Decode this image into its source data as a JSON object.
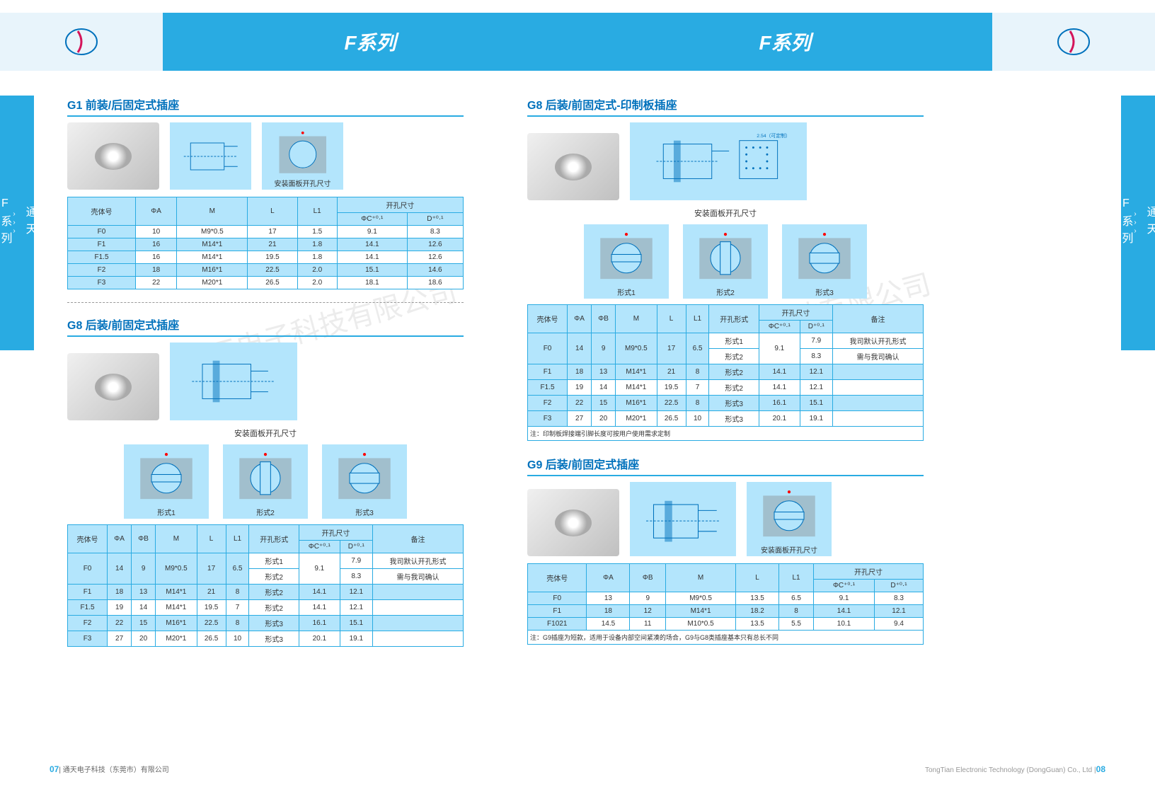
{
  "header": {
    "series_title": "F系列"
  },
  "side": {
    "text_top": "通天",
    "text_bottom": "F系列"
  },
  "g1": {
    "title": "G1 前装/后固定式插座",
    "panel_label": "安装面板开孔尺寸",
    "cols": [
      "壳体号",
      "ΦA",
      "M",
      "L",
      "L1",
      "开孔尺寸"
    ],
    "subcols": [
      "ΦC⁺⁰·¹",
      "D⁺⁰·¹"
    ],
    "rows": [
      [
        "F0",
        "10",
        "M9*0.5",
        "17",
        "1.5",
        "9.1",
        "8.3"
      ],
      [
        "F1",
        "16",
        "M14*1",
        "21",
        "1.8",
        "14.1",
        "12.6"
      ],
      [
        "F1.5",
        "16",
        "M14*1",
        "19.5",
        "1.8",
        "14.1",
        "12.6"
      ],
      [
        "F2",
        "18",
        "M16*1",
        "22.5",
        "2.0",
        "15.1",
        "14.6"
      ],
      [
        "F3",
        "22",
        "M20*1",
        "26.5",
        "2.0",
        "18.1",
        "18.6"
      ]
    ]
  },
  "g8l": {
    "title": "G8 后装/前固定式插座",
    "panel_label": "安装面板开孔尺寸",
    "form_labels": [
      "形式1",
      "形式2",
      "形式3"
    ],
    "cols": [
      "壳体号",
      "ΦA",
      "ΦB",
      "M",
      "L",
      "L1",
      "开孔形式",
      "开孔尺寸",
      "备注"
    ],
    "subcols": [
      "ΦC⁺⁰·¹",
      "D⁺⁰·¹"
    ],
    "rows": [
      [
        "F0",
        "14",
        "9",
        "M9*0.5",
        "17",
        "6.5",
        "形式1",
        "9.1",
        "7.9",
        "我司默认开孔形式"
      ],
      [
        "",
        "",
        "",
        "",
        "",
        "",
        "形式2",
        "",
        "8.3",
        "需与我司确认"
      ],
      [
        "F1",
        "18",
        "13",
        "M14*1",
        "21",
        "8",
        "形式2",
        "14.1",
        "12.1",
        ""
      ],
      [
        "F1.5",
        "19",
        "14",
        "M14*1",
        "19.5",
        "7",
        "形式2",
        "14.1",
        "12.1",
        ""
      ],
      [
        "F2",
        "22",
        "15",
        "M16*1",
        "22.5",
        "8",
        "形式3",
        "16.1",
        "15.1",
        ""
      ],
      [
        "F3",
        "27",
        "20",
        "M20*1",
        "26.5",
        "10",
        "形式3",
        "20.1",
        "19.1",
        ""
      ]
    ]
  },
  "g8r": {
    "title": "G8 后装/前固定式-印制板插座",
    "pcb_note": "2.54（可定制）",
    "panel_label": "安装面板开孔尺寸",
    "form_labels": [
      "形式1",
      "形式2",
      "形式3"
    ],
    "cols": [
      "壳体号",
      "ΦA",
      "ΦB",
      "M",
      "L",
      "L1",
      "开孔形式",
      "开孔尺寸",
      "备注"
    ],
    "subcols": [
      "ΦC⁺⁰·¹",
      "D⁺⁰·¹"
    ],
    "rows": [
      [
        "F0",
        "14",
        "9",
        "M9*0.5",
        "17",
        "6.5",
        "形式1",
        "9.1",
        "7.9",
        "我司默认开孔形式"
      ],
      [
        "",
        "",
        "",
        "",
        "",
        "",
        "形式2",
        "",
        "8.3",
        "需与我司确认"
      ],
      [
        "F1",
        "18",
        "13",
        "M14*1",
        "21",
        "8",
        "形式2",
        "14.1",
        "12.1",
        ""
      ],
      [
        "F1.5",
        "19",
        "14",
        "M14*1",
        "19.5",
        "7",
        "形式2",
        "14.1",
        "12.1",
        ""
      ],
      [
        "F2",
        "22",
        "15",
        "M16*1",
        "22.5",
        "8",
        "形式3",
        "16.1",
        "15.1",
        ""
      ],
      [
        "F3",
        "27",
        "20",
        "M20*1",
        "26.5",
        "10",
        "形式3",
        "20.1",
        "19.1",
        ""
      ]
    ],
    "footnote": "注：印制板焊接端引脚长度可按用户使用需求定制"
  },
  "g9": {
    "title": "G9 后装/前固定式插座",
    "panel_label": "安装面板开孔尺寸",
    "cols": [
      "壳体号",
      "ΦA",
      "ΦB",
      "M",
      "L",
      "L1",
      "开孔尺寸"
    ],
    "subcols": [
      "ΦC⁺⁰·¹",
      "D⁺⁰·¹"
    ],
    "rows": [
      [
        "F0",
        "13",
        "9",
        "M9*0.5",
        "13.5",
        "6.5",
        "9.1",
        "8.3"
      ],
      [
        "F1",
        "18",
        "12",
        "M14*1",
        "18.2",
        "8",
        "14.1",
        "12.1"
      ],
      [
        "F1021",
        "14.5",
        "11",
        "M10*0.5",
        "13.5",
        "5.5",
        "10.1",
        "9.4"
      ]
    ],
    "footnote": "注：G9插座为短款，适用于设备内部空间紧凑的场合，G9与G8类插座基本只有总长不同"
  },
  "watermark": "通天电子科技有限公司",
  "footer": {
    "left_page": "07",
    "left_text": "通天电子科技（东莞市）有限公司",
    "right_text": "TongTian Electronic Technology (DongGuan) Co., Ltd",
    "right_page": "08"
  },
  "colors": {
    "primary": "#29abe2",
    "dark": "#0071bc",
    "light": "#b3e5fc"
  }
}
